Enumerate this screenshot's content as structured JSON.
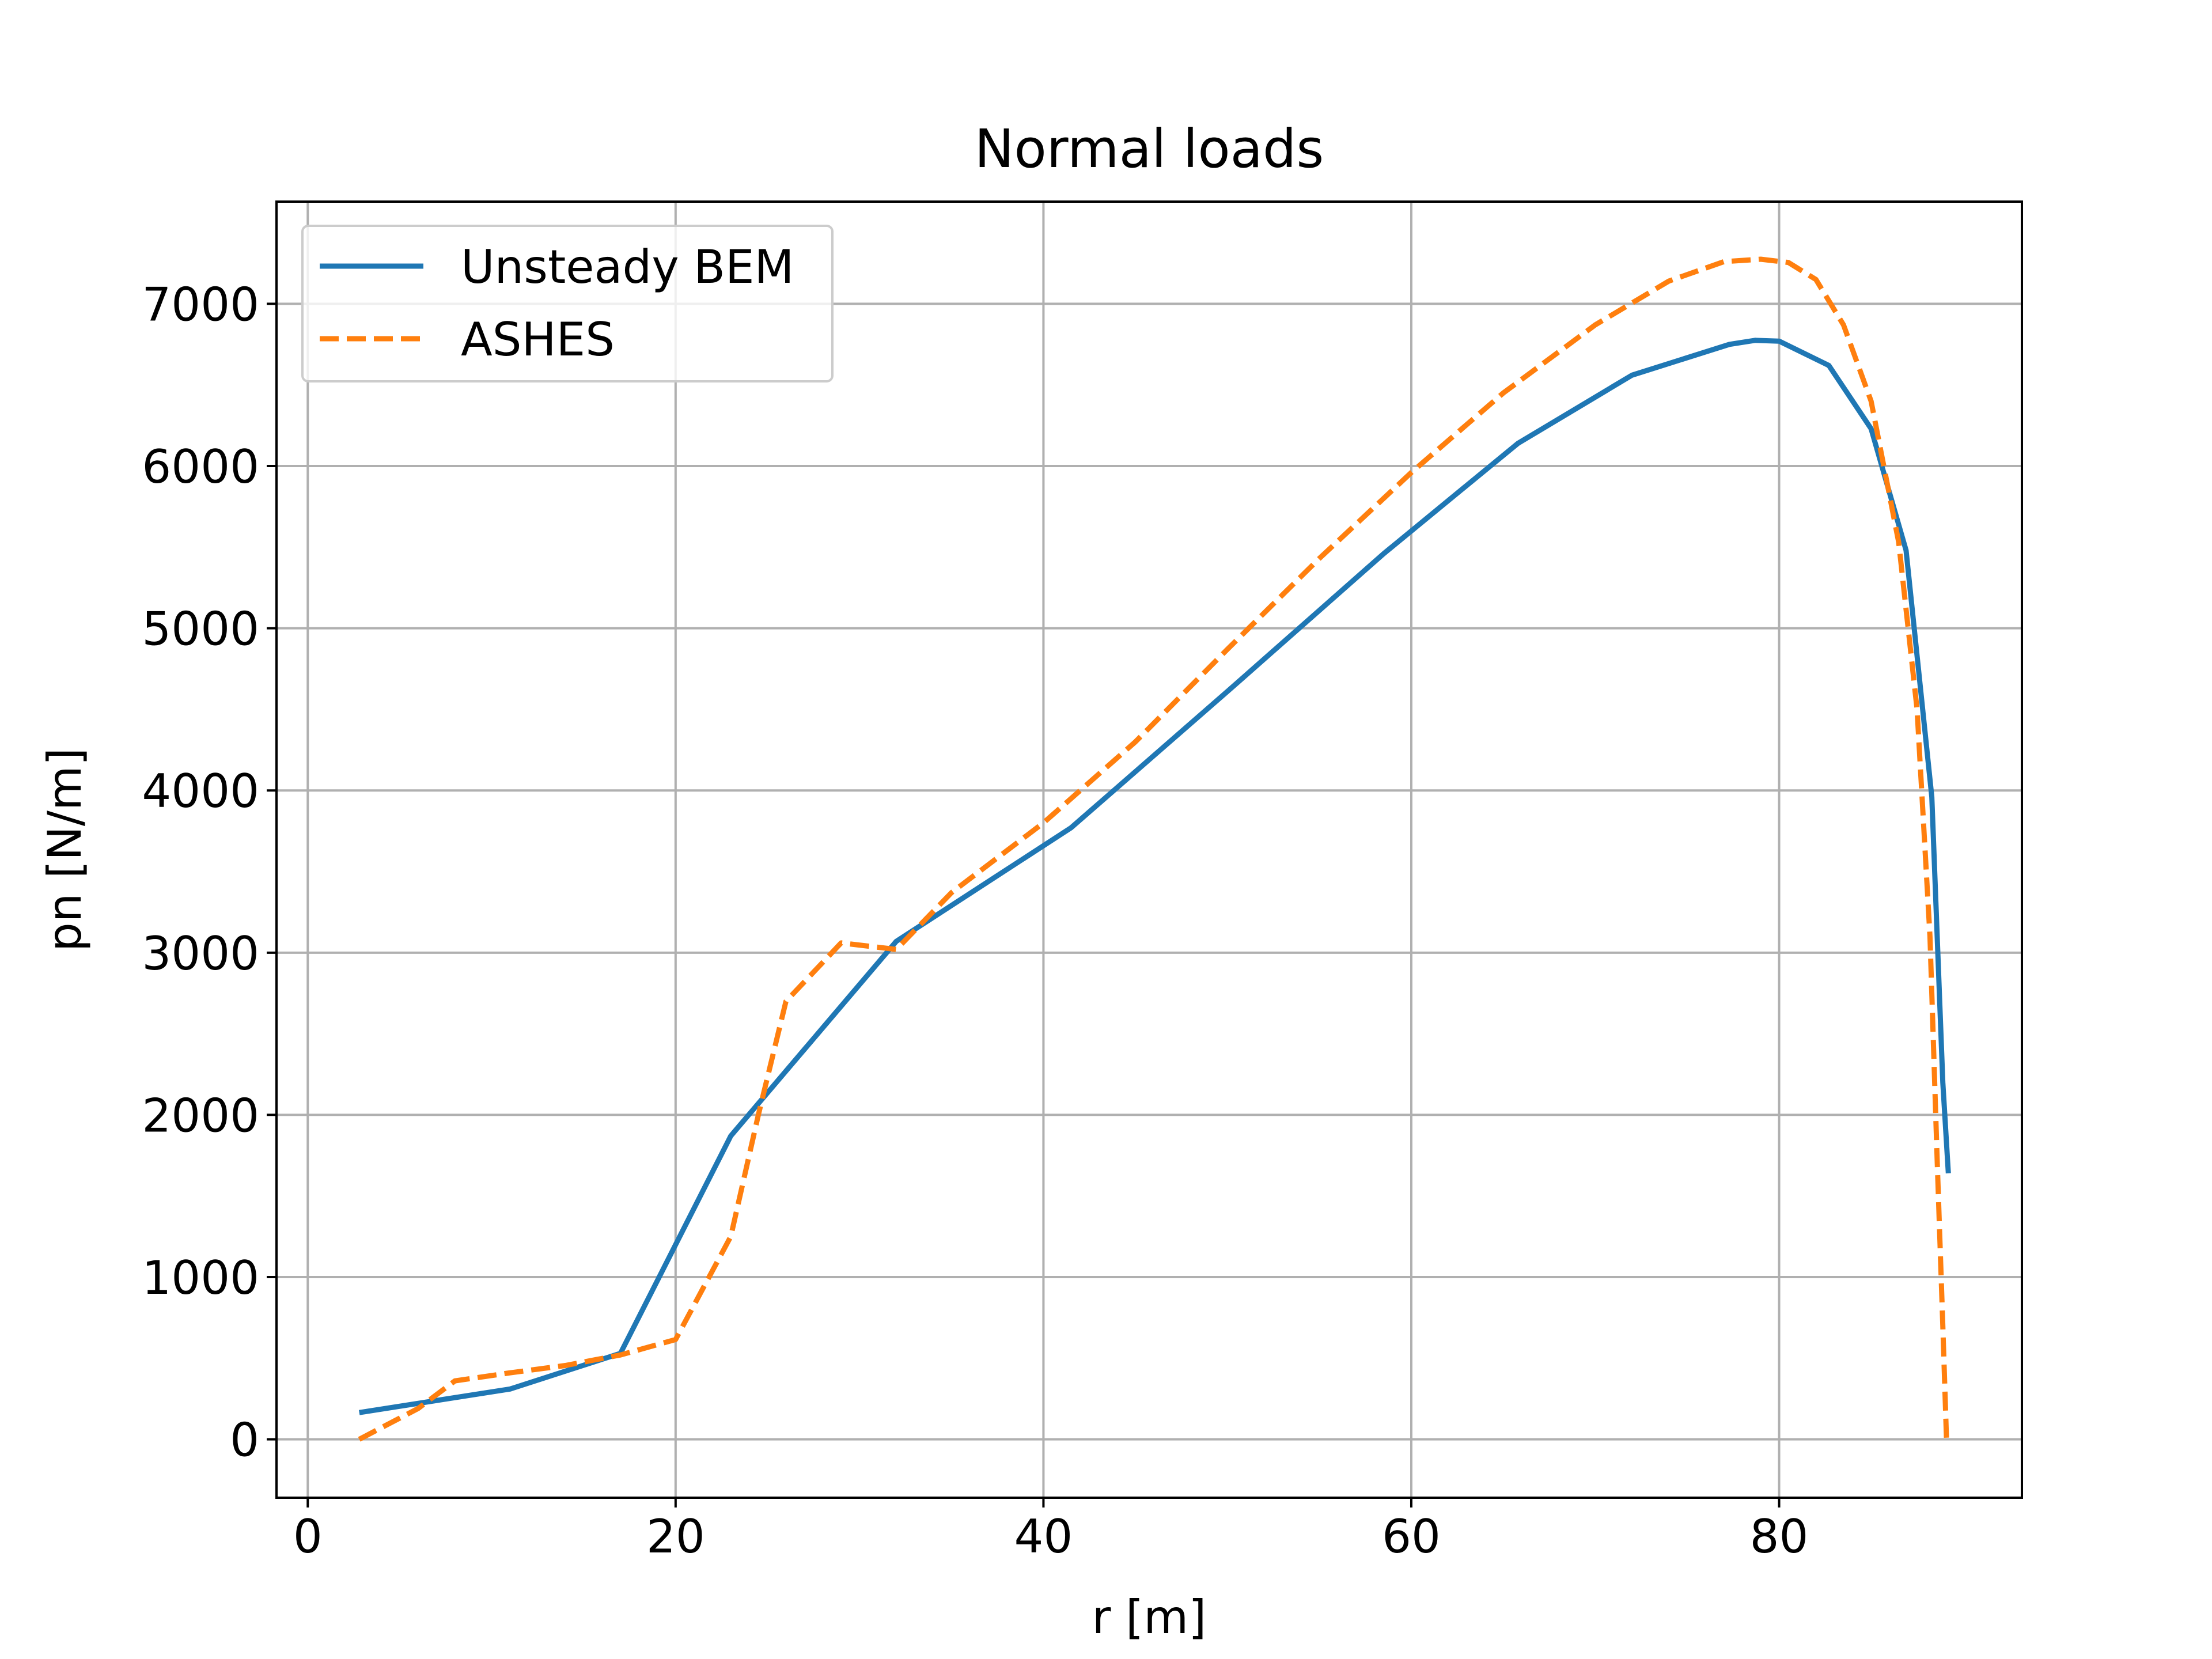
{
  "chart_data": {
    "type": "line",
    "title": "Normal loads",
    "xlabel": "r [m]",
    "ylabel": "pn [N/m]",
    "xlim": [
      -1.7,
      93.2
    ],
    "ylim": [
      -360,
      7630
    ],
    "xticks": [
      0,
      20,
      40,
      60,
      80
    ],
    "yticks": [
      0,
      1000,
      2000,
      3000,
      4000,
      5000,
      6000,
      7000
    ],
    "grid": true,
    "legend_position": "top-left",
    "series": [
      {
        "name": "Unsteady BEM",
        "color": "#1f77b4",
        "style": "solid",
        "x": [
          2.8,
          11.0,
          17.0,
          23.0,
          32.0,
          41.5,
          50.0,
          58.5,
          65.8,
          72.0,
          77.3,
          78.7,
          80.0,
          82.7,
          85.0,
          86.9,
          88.3,
          88.9,
          89.2
        ],
        "y": [
          165,
          310,
          530,
          1870,
          3070,
          3770,
          4610,
          5460,
          6140,
          6560,
          6750,
          6775,
          6770,
          6620,
          6230,
          5480,
          3960,
          2200,
          1640
        ]
      },
      {
        "name": "ASHES",
        "color": "#ff7f0e",
        "style": "dashed",
        "x": [
          2.8,
          6.0,
          8.0,
          11.0,
          14.0,
          17.0,
          20.0,
          23.0,
          24.5,
          26.0,
          29.0,
          32.0,
          35.0,
          40.0,
          45.0,
          50.0,
          55.0,
          60.0,
          65.0,
          70.0,
          74.0,
          77.0,
          79.0,
          80.5,
          82.0,
          83.5,
          85.0,
          86.5,
          87.5,
          88.2,
          88.6,
          88.9,
          89.1
        ],
        "y": [
          0,
          190,
          360,
          410,
          455,
          520,
          615,
          1250,
          2000,
          2700,
          3060,
          3020,
          3370,
          3800,
          4300,
          4870,
          5430,
          5960,
          6450,
          6870,
          7140,
          7260,
          7275,
          7255,
          7150,
          6870,
          6400,
          5530,
          4500,
          3100,
          1700,
          700,
          0
        ]
      }
    ]
  }
}
